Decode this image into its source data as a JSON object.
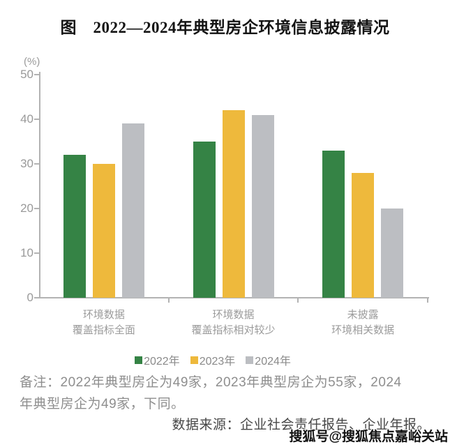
{
  "page": {
    "title": "图　2022—2024年典型房企环境信息披露情况",
    "note": "备注：2022年典型房企为49家，2023年典型房企为55家，2024年典型房企为49家，下同。",
    "source": "数据来源：企业社会责任报告、企业年报。",
    "watermark": "搜狐号@搜狐焦点嘉峪关站"
  },
  "chart_data": {
    "type": "bar",
    "title": "图 2022—2024年典型房企环境信息披露情况",
    "unit_label": "(%)",
    "categories": [
      [
        "环境数据",
        "覆盖指标全面"
      ],
      [
        "环境数据",
        "覆盖指标相对较少"
      ],
      [
        "未披露",
        "环境相关数据"
      ]
    ],
    "series": [
      {
        "name": "2022年",
        "color": "#358345",
        "values": [
          32,
          35,
          33
        ]
      },
      {
        "name": "2023年",
        "color": "#EEB93C",
        "values": [
          30,
          42,
          28
        ]
      },
      {
        "name": "2024年",
        "color": "#BCBEC2",
        "values": [
          39,
          41,
          20
        ]
      }
    ],
    "ylim": [
      0,
      50
    ],
    "yticks": [
      0,
      10,
      20,
      30,
      40,
      50
    ],
    "grid": false,
    "legend_position": "bottom",
    "axis_color": "#b3b3b3",
    "tick_label_color": "#9a9a9a"
  }
}
